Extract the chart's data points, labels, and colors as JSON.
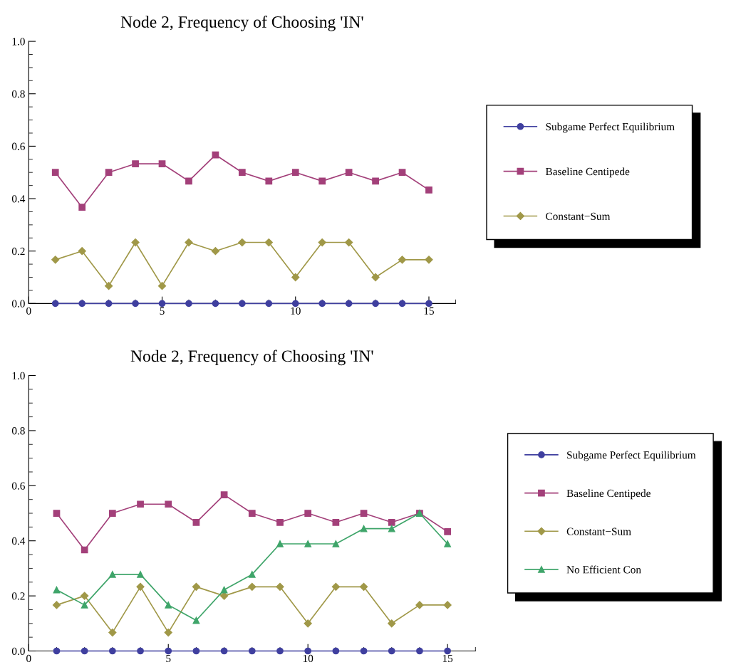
{
  "chart_data": [
    {
      "type": "line",
      "title": "Node 2, Frequency of Choosing 'IN'",
      "x": [
        1,
        2,
        3,
        4,
        5,
        6,
        7,
        8,
        9,
        10,
        11,
        12,
        13,
        14,
        15
      ],
      "xlim": [
        0,
        16
      ],
      "xticks": [
        0,
        5,
        10,
        15
      ],
      "ylim": [
        0,
        1.0
      ],
      "yticks": [
        {
          "value": 0,
          "label": "0.0"
        },
        {
          "value": 0.2,
          "label": "0.2"
        },
        {
          "value": 0.4,
          "label": "0.4"
        },
        {
          "value": 0.6,
          "label": "0.6"
        },
        {
          "value": 0.8,
          "label": "0.8"
        },
        {
          "value": 1.0,
          "label": "1.0"
        }
      ],
      "grid": false,
      "legend": "right",
      "line_style": "solid",
      "series": [
        {
          "name": "Subgame Perfect Equilibrium",
          "color": "#3f3f9f",
          "marker": "circle",
          "values": [
            0,
            0,
            0,
            0,
            0,
            0,
            0,
            0,
            0,
            0,
            0,
            0,
            0,
            0,
            0
          ]
        },
        {
          "name": "Baseline Centipede",
          "color": "#a3407a",
          "marker": "square",
          "values": [
            0.5,
            0.367,
            0.5,
            0.533,
            0.533,
            0.467,
            0.567,
            0.5,
            0.467,
            0.5,
            0.467,
            0.5,
            0.467,
            0.5,
            0.433
          ]
        },
        {
          "name": "Constant−Sum",
          "color": "#a09848",
          "marker": "diamond",
          "values": [
            0.167,
            0.2,
            0.067,
            0.233,
            0.067,
            0.233,
            0.2,
            0.233,
            0.233,
            0.1,
            0.233,
            0.233,
            0.1,
            0.167,
            0.167
          ]
        }
      ]
    },
    {
      "type": "line",
      "title": "Node 2, Frequency of Choosing 'IN'",
      "x": [
        1,
        2,
        3,
        4,
        5,
        6,
        7,
        8,
        9,
        10,
        11,
        12,
        13,
        14,
        15
      ],
      "xlim": [
        0,
        16
      ],
      "xticks": [
        0,
        5,
        10,
        15
      ],
      "ylim": [
        0,
        1.0
      ],
      "yticks": [
        {
          "value": 0,
          "label": "0.0"
        },
        {
          "value": 0.2,
          "label": "0.2"
        },
        {
          "value": 0.4,
          "label": "0.4"
        },
        {
          "value": 0.6,
          "label": "0.6"
        },
        {
          "value": 0.8,
          "label": "0.8"
        },
        {
          "value": 1.0,
          "label": "1.0"
        }
      ],
      "grid": false,
      "legend": "right",
      "line_style": "solid",
      "series": [
        {
          "name": "Subgame Perfect Equilibrium",
          "color": "#3f3f9f",
          "marker": "circle",
          "values": [
            0,
            0,
            0,
            0,
            0,
            0,
            0,
            0,
            0,
            0,
            0,
            0,
            0,
            0,
            0
          ]
        },
        {
          "name": "Baseline Centipede",
          "color": "#a3407a",
          "marker": "square",
          "values": [
            0.5,
            0.367,
            0.5,
            0.533,
            0.533,
            0.467,
            0.567,
            0.5,
            0.467,
            0.5,
            0.467,
            0.5,
            0.467,
            0.5,
            0.433
          ]
        },
        {
          "name": "Constant−Sum",
          "color": "#a09848",
          "marker": "diamond",
          "values": [
            0.167,
            0.2,
            0.067,
            0.233,
            0.067,
            0.233,
            0.2,
            0.233,
            0.233,
            0.1,
            0.233,
            0.233,
            0.1,
            0.167,
            0.167
          ]
        },
        {
          "name": "No Efficient Con",
          "color": "#3fa56a",
          "marker": "triangle",
          "values": [
            0.222,
            0.167,
            0.278,
            0.278,
            0.167,
            0.111,
            0.222,
            0.278,
            0.389,
            0.389,
            0.389,
            0.444,
            0.444,
            0.5,
            0.389
          ]
        }
      ]
    }
  ]
}
